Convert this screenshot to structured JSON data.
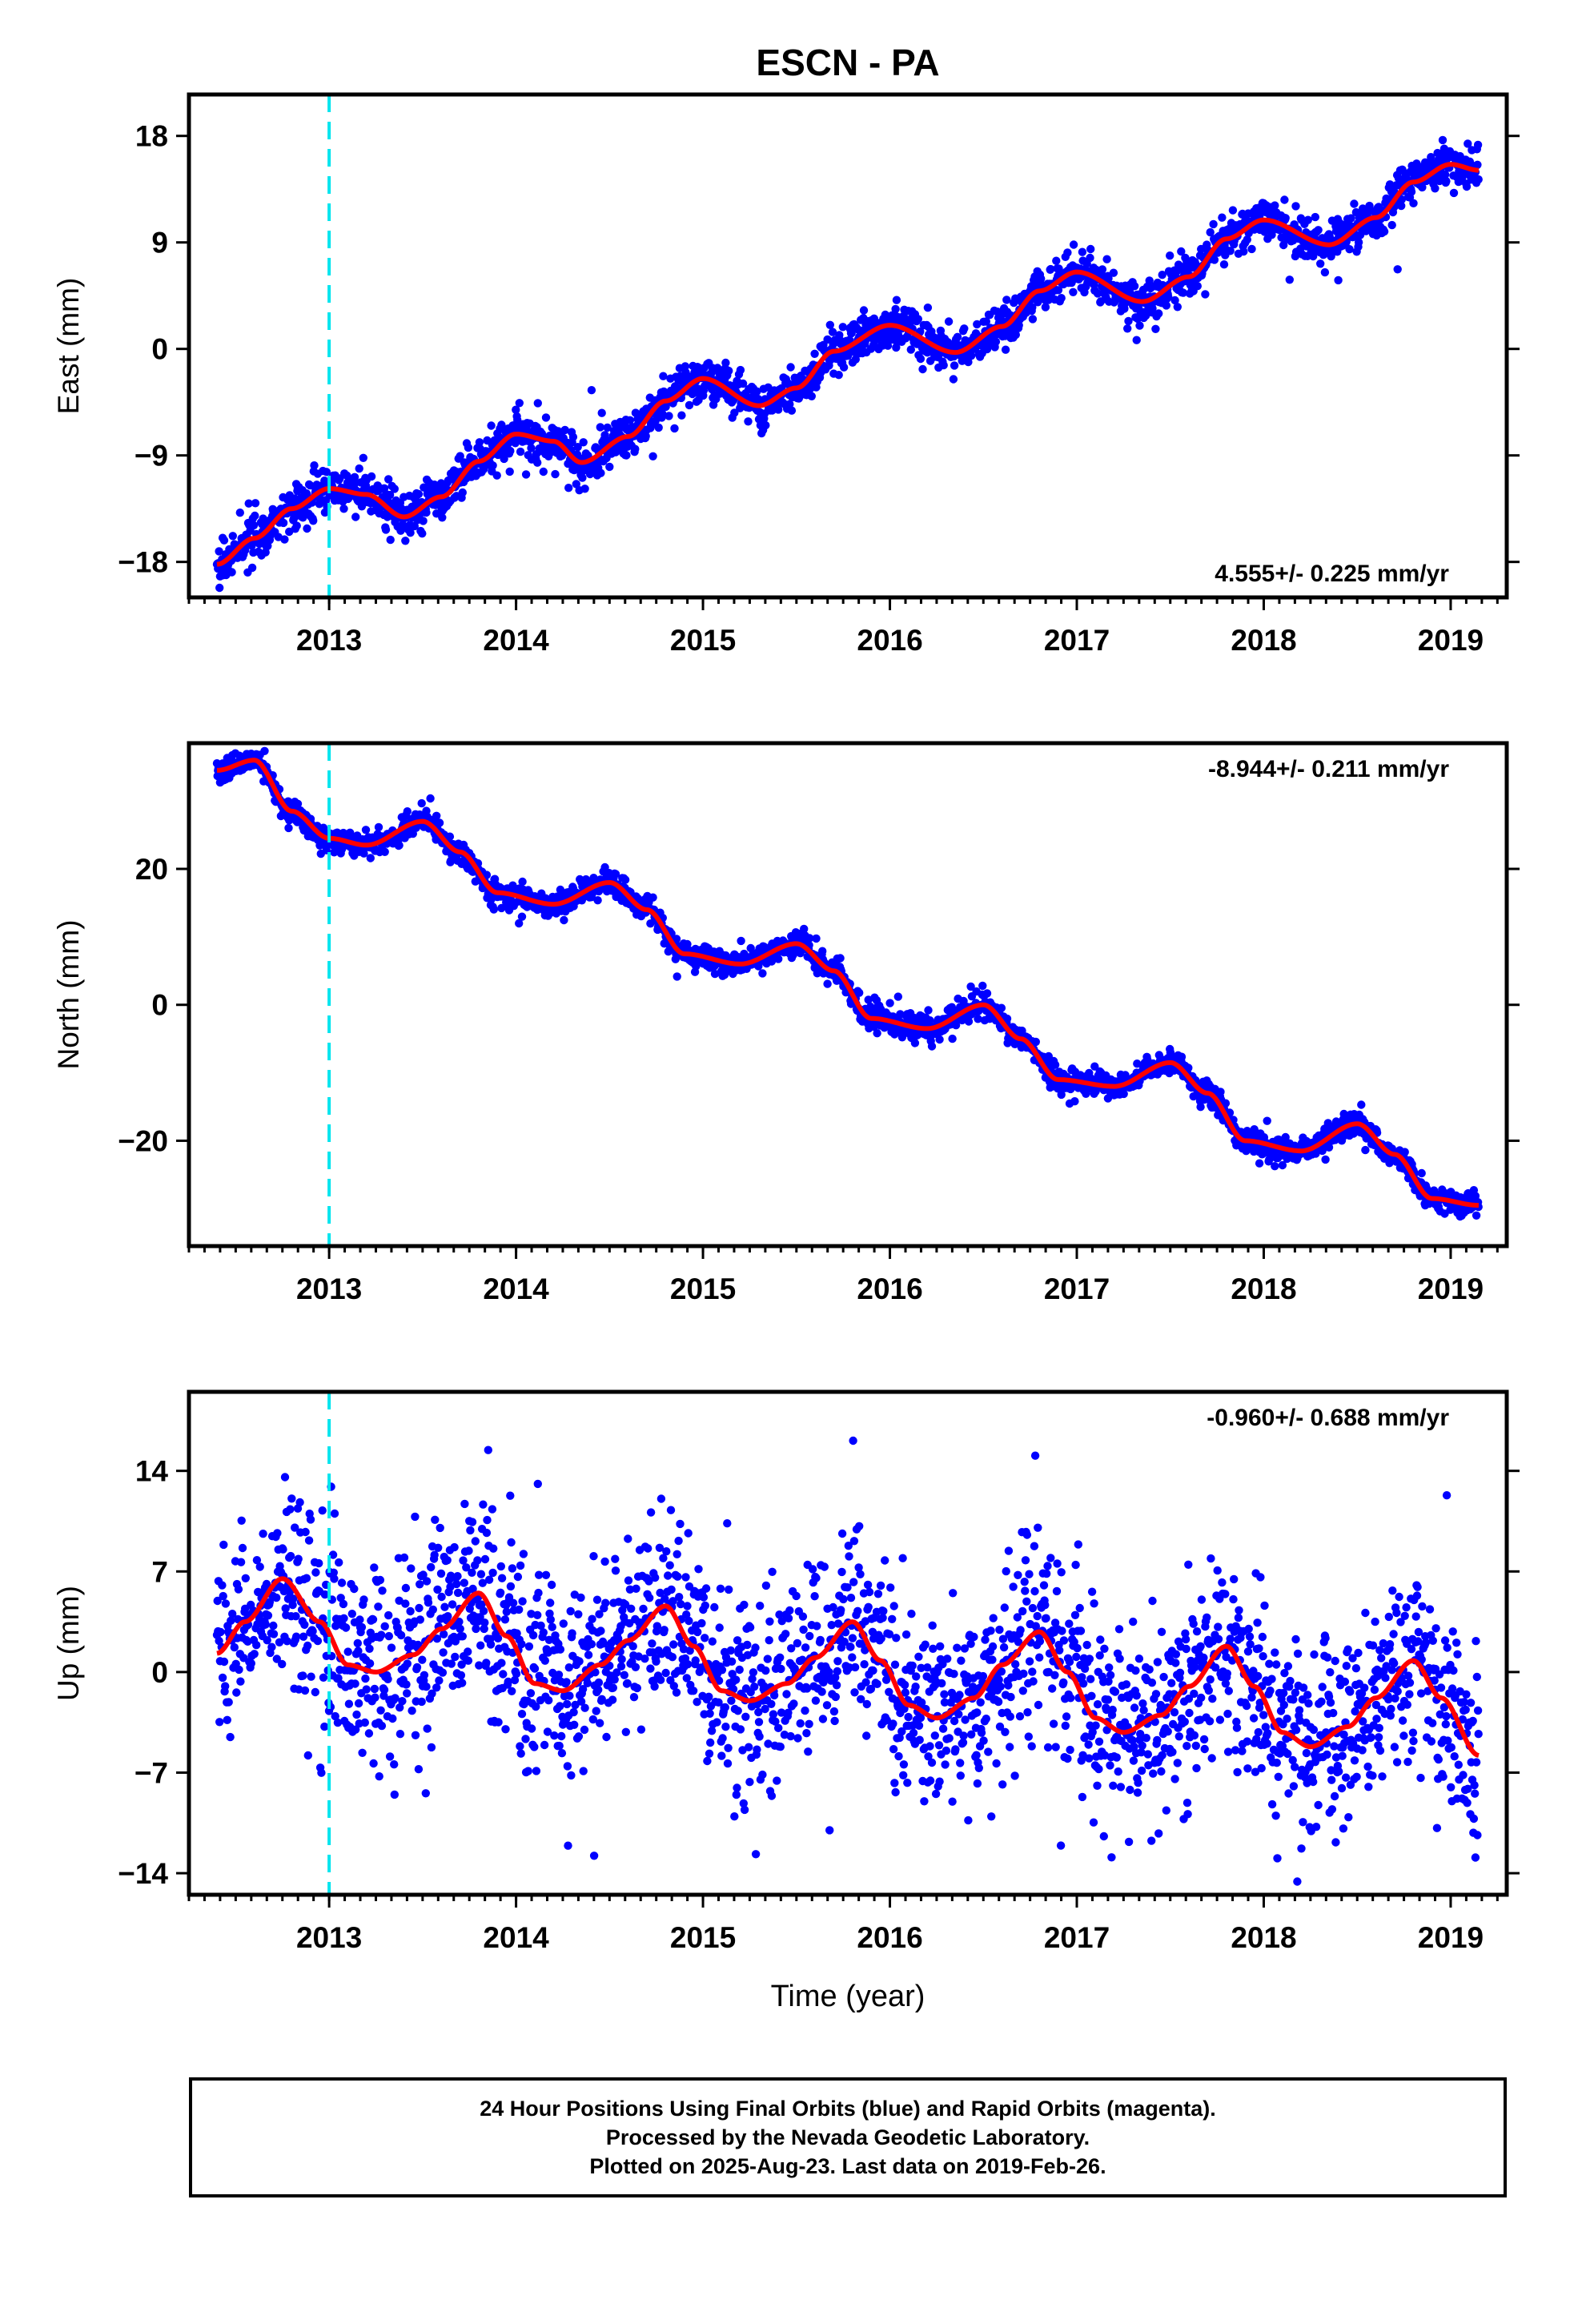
{
  "figure_title": "ESCN - PA",
  "x_axis": {
    "xlabel": "Time (year)",
    "xlim": [
      2012.25,
      2019.3
    ],
    "ticks": [
      2013,
      2014,
      2015,
      2016,
      2017,
      2018,
      2019
    ],
    "tick_labels": [
      "2013",
      "2014",
      "2015",
      "2016",
      "2017",
      "2018",
      "2019"
    ],
    "event_line_year": 2013.0
  },
  "colors": {
    "data_points": "#0000ff",
    "model_fit": "#ff0000",
    "event_line": "#00e5ee",
    "frame": "#000000"
  },
  "chart_data": [
    {
      "type": "scatter",
      "component": "east",
      "ylabel": "East (mm)",
      "ylim": [
        -21,
        21.5
      ],
      "yticks": [
        18,
        9,
        0,
        -9,
        -18
      ],
      "ytick_labels": [
        "18",
        "9",
        "0",
        "−9",
        "−18"
      ],
      "rate_label": "4.555+/- 0.225 mm/yr",
      "rate_label_position": "bottom-right",
      "series": [
        {
          "name": "observations",
          "marker": "dot",
          "trend": {
            "rate_mm_per_yr": 4.555,
            "value_at_2016": 0.8
          },
          "seasonal": {
            "amplitude_mm": 1.9,
            "peak_phase_year_fraction": 0.02
          },
          "scatter_sd_mm": 0.9,
          "x_start": 2012.4,
          "x_end": 2019.15
        },
        {
          "name": "model",
          "x": [
            2012.4,
            2012.6,
            2012.8,
            2013.0,
            2013.2,
            2013.4,
            2013.6,
            2013.8,
            2014.0,
            2014.2,
            2014.35,
            2014.6,
            2014.8,
            2015.0,
            2015.3,
            2015.5,
            2015.7,
            2016.0,
            2016.35,
            2016.6,
            2016.8,
            2017.0,
            2017.35,
            2017.6,
            2017.8,
            2018.0,
            2018.35,
            2018.6,
            2018.8,
            2019.0,
            2019.15
          ],
          "y": [
            -18.2,
            -16.0,
            -13.5,
            -11.8,
            -12.3,
            -14.2,
            -12.5,
            -9.5,
            -7.2,
            -7.8,
            -9.6,
            -7.4,
            -4.4,
            -2.5,
            -4.8,
            -3.3,
            -0.2,
            2.0,
            -0.3,
            1.9,
            4.9,
            6.5,
            4.0,
            6.1,
            9.3,
            10.9,
            8.8,
            11.1,
            14.1,
            15.6,
            15.1
          ]
        }
      ]
    },
    {
      "type": "scatter",
      "component": "north",
      "ylabel": "North (mm)",
      "ylim": [
        -35.5,
        38.5
      ],
      "yticks": [
        20,
        0,
        -20
      ],
      "ytick_labels": [
        "20",
        "0",
        "−20"
      ],
      "rate_label": "-8.944+/- 0.211 mm/yr",
      "rate_label_position": "top-right",
      "series": [
        {
          "name": "observations",
          "marker": "dot",
          "follows_model": true,
          "scatter_sd_mm": 0.9,
          "x_start": 2012.4,
          "x_end": 2019.15
        },
        {
          "name": "model",
          "x": [
            2012.4,
            2012.6,
            2012.8,
            2013.0,
            2013.2,
            2013.5,
            2013.7,
            2013.9,
            2014.2,
            2014.5,
            2014.7,
            2014.9,
            2015.2,
            2015.5,
            2015.7,
            2015.9,
            2016.2,
            2016.5,
            2016.7,
            2016.9,
            2017.2,
            2017.5,
            2017.7,
            2017.9,
            2018.2,
            2018.5,
            2018.7,
            2018.9,
            2019.15
          ],
          "y": [
            34.5,
            36.0,
            28.5,
            24.5,
            23.5,
            27.0,
            22.5,
            16.5,
            14.8,
            18.0,
            14.0,
            7.5,
            6.0,
            9.0,
            5.0,
            -2.0,
            -3.5,
            0.0,
            -5.0,
            -11.0,
            -12.0,
            -8.5,
            -13.0,
            -20.0,
            -21.5,
            -17.5,
            -22.0,
            -28.5,
            -29.5
          ]
        }
      ]
    },
    {
      "type": "scatter",
      "component": "up",
      "ylabel": "Up (mm)",
      "ylim": [
        -15.5,
        19.5
      ],
      "yticks": [
        14,
        7,
        0,
        -7,
        -14
      ],
      "ytick_labels": [
        "14",
        "7",
        "0",
        "−7",
        "−14"
      ],
      "rate_label": "-0.960+/- 0.688 mm/yr",
      "rate_label_position": "top-right",
      "series": [
        {
          "name": "observations",
          "marker": "dot",
          "follows_model": true,
          "scatter_sd_mm": 3.3,
          "x_start": 2012.4,
          "x_end": 2019.15
        },
        {
          "name": "model",
          "x": [
            2012.4,
            2012.55,
            2012.75,
            2012.95,
            2013.1,
            2013.25,
            2013.45,
            2013.6,
            2013.8,
            2013.95,
            2014.1,
            2014.25,
            2014.45,
            2014.6,
            2014.8,
            2014.95,
            2015.1,
            2015.25,
            2015.45,
            2015.6,
            2015.8,
            2015.95,
            2016.1,
            2016.25,
            2016.45,
            2016.6,
            2016.8,
            2016.95,
            2017.1,
            2017.25,
            2017.45,
            2017.6,
            2017.8,
            2017.95,
            2018.1,
            2018.25,
            2018.45,
            2018.6,
            2018.8,
            2018.95,
            2019.15
          ],
          "y": [
            1.3,
            3.5,
            6.5,
            3.5,
            0.5,
            0.0,
            1.2,
            3.0,
            5.5,
            2.5,
            -0.8,
            -1.3,
            0.5,
            2.2,
            4.6,
            1.8,
            -1.3,
            -2.0,
            -0.8,
            1.0,
            3.5,
            0.8,
            -2.3,
            -3.2,
            -1.8,
            0.5,
            2.8,
            0.0,
            -3.2,
            -4.2,
            -3.0,
            -1.0,
            1.8,
            -1.0,
            -4.2,
            -5.2,
            -3.8,
            -1.8,
            0.8,
            -1.8,
            -5.8
          ]
        }
      ]
    }
  ],
  "footer": {
    "line1": "24 Hour Positions Using Final Orbits (blue) and Rapid Orbits (magenta).",
    "line2": "Processed by the Nevada Geodetic Laboratory.",
    "line3": "Plotted on 2025-Aug-23. Last data on 2019-Feb-26."
  }
}
